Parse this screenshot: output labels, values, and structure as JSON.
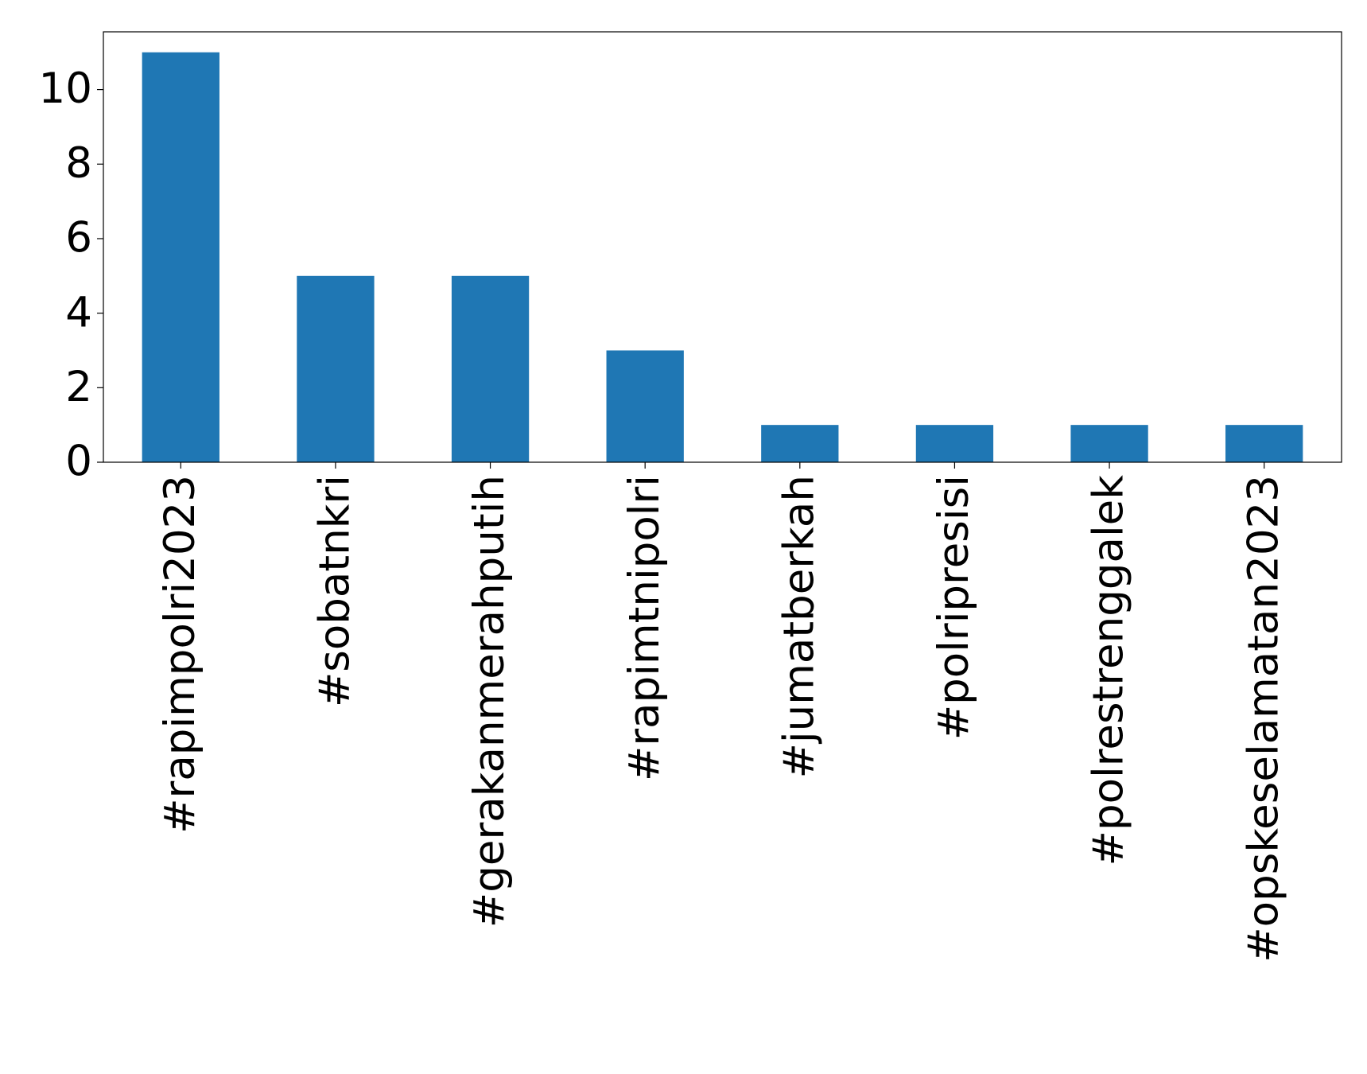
{
  "chart_data": {
    "type": "bar",
    "categories": [
      "#rapimpolri2023",
      "#sobatnkri",
      "#gerakanmerahputih",
      "#rapimtnipolri",
      "#jumatberkah",
      "#polripresisi",
      "#polrestrenggalek",
      "#opskeselamatan2023"
    ],
    "values": [
      11,
      5,
      5,
      3,
      1,
      1,
      1,
      1
    ],
    "color": "#1f77b4",
    "ylim": [
      0,
      11.55
    ],
    "yticks": [
      0,
      2,
      4,
      6,
      8,
      10
    ],
    "grid": false
  }
}
